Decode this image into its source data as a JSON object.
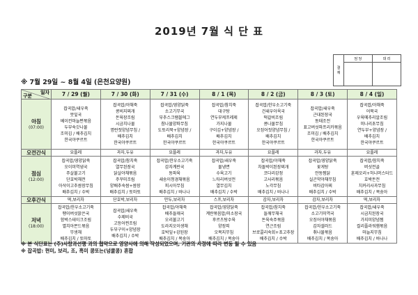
{
  "title": "2019년 7월 식 단 표",
  "approval": {
    "label": "결\n재",
    "label_lines": [
      "결",
      "재"
    ],
    "col1": "담 당",
    "col2": "대 리"
  },
  "period": "※ 7월 29일 ~ 8월 4일 (은천요양원)",
  "header": {
    "date_label": "일자",
    "category_label": "구분"
  },
  "days": [
    "7 / 29 (월)",
    "7 / 30 (화)",
    "7 / 31 (수)",
    "8 / 1 (목)",
    "8 / 2 (금)",
    "8 / 3 (토)",
    "8 / 4 (일)"
  ],
  "rows": {
    "breakfast": {
      "label": "아침",
      "time": "(07:00)",
      "cells": [
        [
          "잡곡밥/새우죽",
          "뭇잎국",
          "베이컨마늘편볶음",
          "두부숙갓나물",
          "조미김 / 배추김치",
          "한국야쿠르트"
        ],
        [
          "잡곡밥/야채죽",
          "콩비지찌개",
          "돈육장조림",
          "시금치나물",
          "명란젓양념무침 /",
          "배추김치",
          "한국야쿠르트"
        ],
        [
          "잡곡밥/영양닭죽",
          "소고기무국",
          "부추스크램블에그",
          "참나물양파무침",
          "도토리묵+양념장 /",
          "배추김치",
          "한국야쿠르트"
        ],
        [
          "잡곡밥/참치죽",
          "대구탕",
          "연두부케프레제",
          "가지나물",
          "구이김+양념장 /",
          "배추김치",
          "한국야쿠르트"
        ],
        [
          "잡곡밥/한우소고기죽",
          "건새우아욱국",
          "떡갈비조림",
          "콩나물무침",
          "오징어젓양념무침 /",
          "배추김치",
          "한국야쿠르트"
        ],
        [
          "잡곡밥/새우죽",
          "근대된장국",
          "동태조전",
          "표고버섯파프리카볶음",
          "조미김 / 배추김치",
          "한국야쿠르트"
        ],
        [
          "잡곡밥/야채죽",
          "어묵국",
          "우육메추리알조림",
          "미나리초무침",
          "연두부+양념장 /",
          "배추김치",
          "한국야쿠르트"
        ]
      ]
    },
    "am_snack": {
      "label": "오전간식",
      "cells": [
        "요플레",
        "과자,두유",
        "요플레",
        "과자,두유",
        "요플레",
        "과자,두유",
        "요플레"
      ]
    },
    "lunch": {
      "label": "점심",
      "time": "(12:00)",
      "cells": [
        [
          "잡곡밥/영양닭죽",
          "오이미역냉국",
          "주살불고기",
          "단호박채전",
          "아삭이고추쌈장무침",
          "배추김치 / 수박"
        ],
        [
          "잡곡밥/참치죽",
          "열무된장국",
          "닭살야채볶음",
          "주꾸미조림",
          "양배추숙쌈+쌈장",
          "배추김치 / 토마토"
        ],
        [
          "잡곡밥/한우소고기죽",
          "감자계란국",
          "동파육",
          "새송이청경채볶음",
          "피시아무침",
          "배추김치 / 바나나"
        ],
        [
          "잡곡밥/새우죽",
          "물냉면",
          "수육고기",
          "느타리버섯전",
          "열무김치",
          "배추김치 / 수박"
        ],
        [
          "잡곡밥/야채죽",
          "차돌박이된장찌개",
          "코다리강정",
          "고사리볶음",
          "노각무침",
          "배추김치 / 바나나"
        ],
        [
          "잡곡밥/영양닭죽",
          "꽃게탕",
          "안동찜닭",
          "실곤약야채무침",
          "비타감아찌",
          "배추김치 / 수박"
        ],
        [
          "잡곡밥/참치죽",
          "버섯전골",
          "훈제오리+허니머스터드",
          "호박돈전",
          "치커리사과무침",
          "배추김치 / 복숭아"
        ]
      ]
    },
    "pm_snack": {
      "label": "오후간식",
      "cells": [
        "떡,보리차",
        "단호박,보리차",
        "만두,보리차",
        "스프,보리차",
        "감자,보리차",
        "감자,보리차",
        "떡,보리차"
      ]
    },
    "dinner": {
      "label": "저녁",
      "time": "(18:00)",
      "cells": [
        [
          "잡곡밥/한우소고기죽",
          "팽이버섯맑은국",
          "함박스테이크조림",
          "멸치아몬드볶음",
          "무생채",
          "배추김치 / 토마토"
        ],
        [
          "잡곡밥/새우죽",
          "수제비국",
          "고등어찐조림",
          "두부구이+양념장",
          "배추김치 / 수박"
        ],
        [
          "잡곡밥/야채죽",
          "배추들깨국",
          "오리불고기",
          "도라지오이생채",
          "호박잎+강된장",
          "배추김치 / 복숭아"
        ],
        [
          "잡곡밥/영양닭죽",
          "계란볶음밥/미소장국",
          "후르츠탕수육",
          "양장피",
          "오복지무침",
          "배추김치 / 복숭아"
        ],
        [
          "잡곡밥/참치죽",
          "들깨무채국",
          "돈육숙주볶음",
          "연근조림",
          "브로콜리숙회+초고추장",
          "배추김치 / 수박"
        ],
        [
          "잡곡밥/한우소고기죽",
          "소고기미역국",
          "오징어야채볶음",
          "감자샐러드",
          "취나물볶음",
          "배추김치 / 복숭아"
        ],
        [
          "잡곡밥/새우죽",
          "시금치된장국",
          "가지미양념찜",
          "컬리플라워햄볶음",
          "마늘지무침",
          "배추김치 / 바나나"
        ]
      ]
    }
  },
  "notes": [
    "※ 본 식단표는 (주)사랑과선행 과의 협약으로 영양사에 의해 작성되었으며, 기관의 사정에 따라 변동 될 수 있음",
    "※ 잡곡밥: 현미, 보리, 조, 흑미 콩또는(넝쿨콩) 혼합"
  ],
  "colors": {
    "header_bg": "#e4f2d6",
    "border": "#777777"
  }
}
